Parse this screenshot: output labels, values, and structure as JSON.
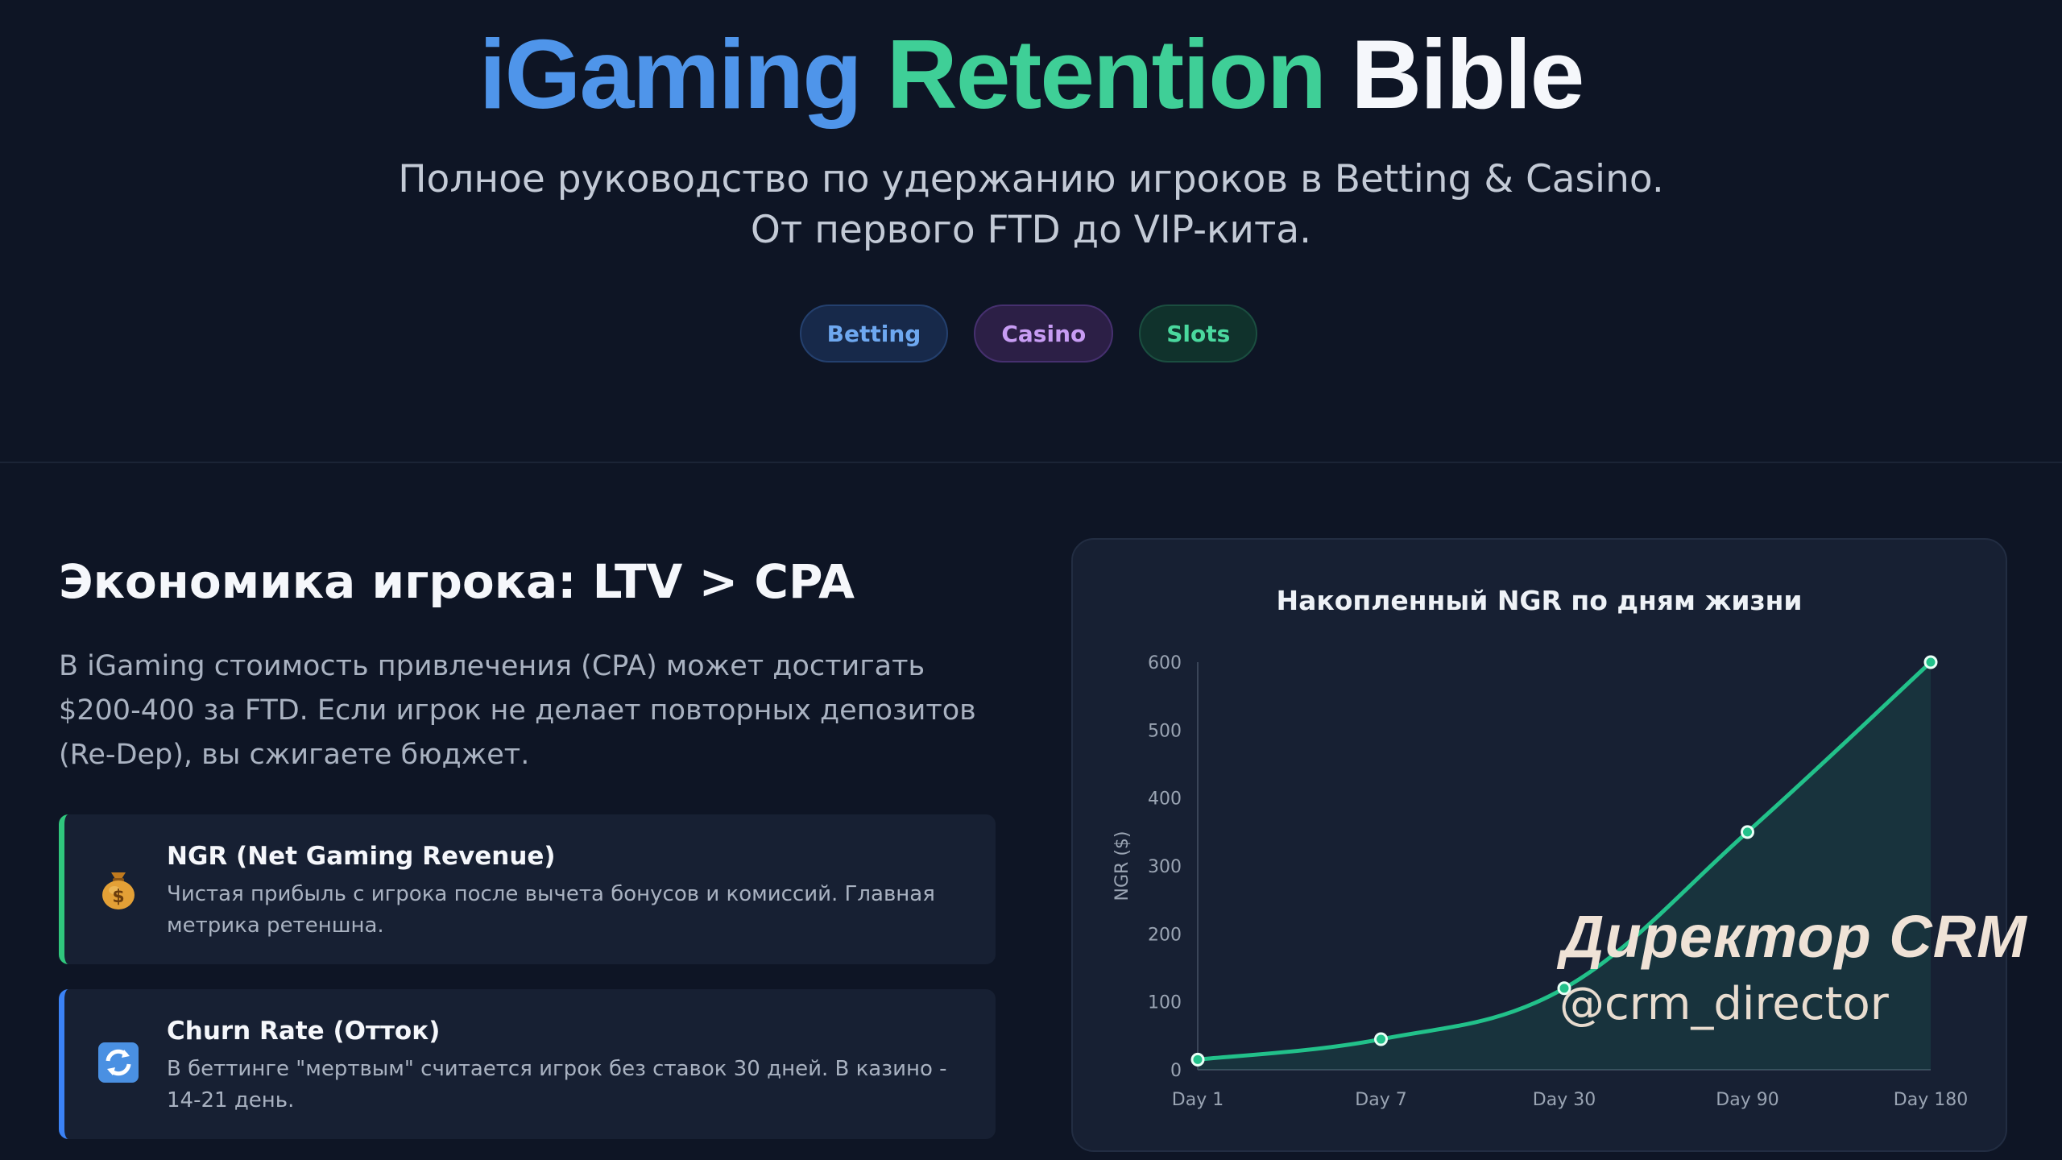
{
  "hero": {
    "title_part1": "iGaming",
    "title_part2": "Retention",
    "title_part3": "Bible",
    "subtitle_line1": "Полное руководство по удержанию игроков в Betting & Casino.",
    "subtitle_line2": "От первого FTD до VIP-кита.",
    "tags": [
      "Betting",
      "Casino",
      "Slots"
    ]
  },
  "economics": {
    "title": "Экономика игрока: LTV > CPA",
    "text": "В iGaming стоимость привлечения (CPA) может достигать $200-400 за FTD. Если игрок не делает повторных депозитов (Re-Dep), вы сжигаете бюджет.",
    "cards": [
      {
        "icon": "money-bag-icon",
        "title": "NGR (Net Gaming Revenue)",
        "desc": "Чистая прибыль с игрока после вычета бонусов и комиссий. Главная метрика ретеншна.",
        "accent": "#30c77d"
      },
      {
        "icon": "refresh-icon",
        "title": "Churn Rate (Отток)",
        "desc": "В беттинге \"мертвым\" считается игрок без ставок 30 дней. В казино - 14-21 день.",
        "accent": "#3b82f6"
      }
    ]
  },
  "chart_data": {
    "type": "area",
    "title": "Накопленный NGR по дням жизни",
    "xlabel": "",
    "ylabel": "NGR ($)",
    "categories": [
      "Day 1",
      "Day 7",
      "Day 30",
      "Day 90",
      "Day 180"
    ],
    "values": [
      15,
      45,
      120,
      350,
      600
    ],
    "ylim": [
      0,
      600
    ],
    "yticks": [
      0,
      100,
      200,
      300,
      400,
      500,
      600
    ],
    "grid": false,
    "legend": "none",
    "line_color": "#22c18a"
  },
  "watermark": {
    "line1": "Директор CRM",
    "line2": "@crm_director"
  }
}
